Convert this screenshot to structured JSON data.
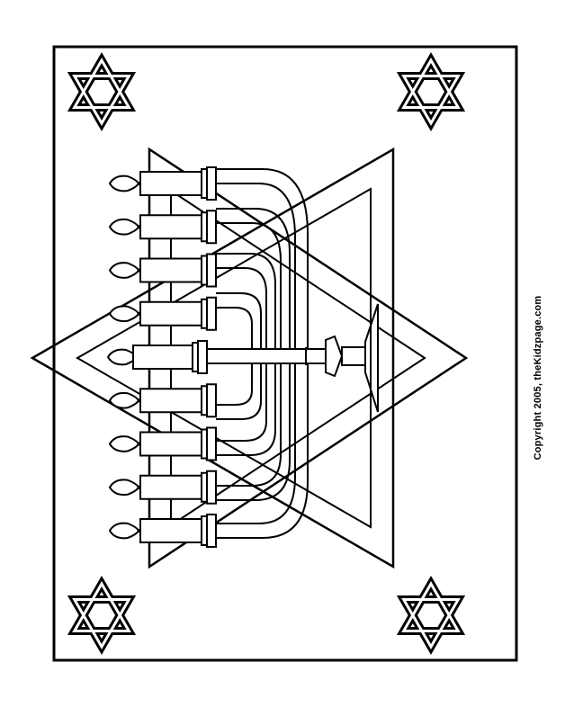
{
  "copyright": "Copyright 2005, theKidzpage.com",
  "colors": {
    "ink": "#000000",
    "paper": "#ffffff"
  },
  "artwork": {
    "corner_ornament": "star-of-david-icon",
    "centerpiece": "menorah-icon",
    "background_emblem": "star-of-david-icon",
    "candle_count": 9
  }
}
